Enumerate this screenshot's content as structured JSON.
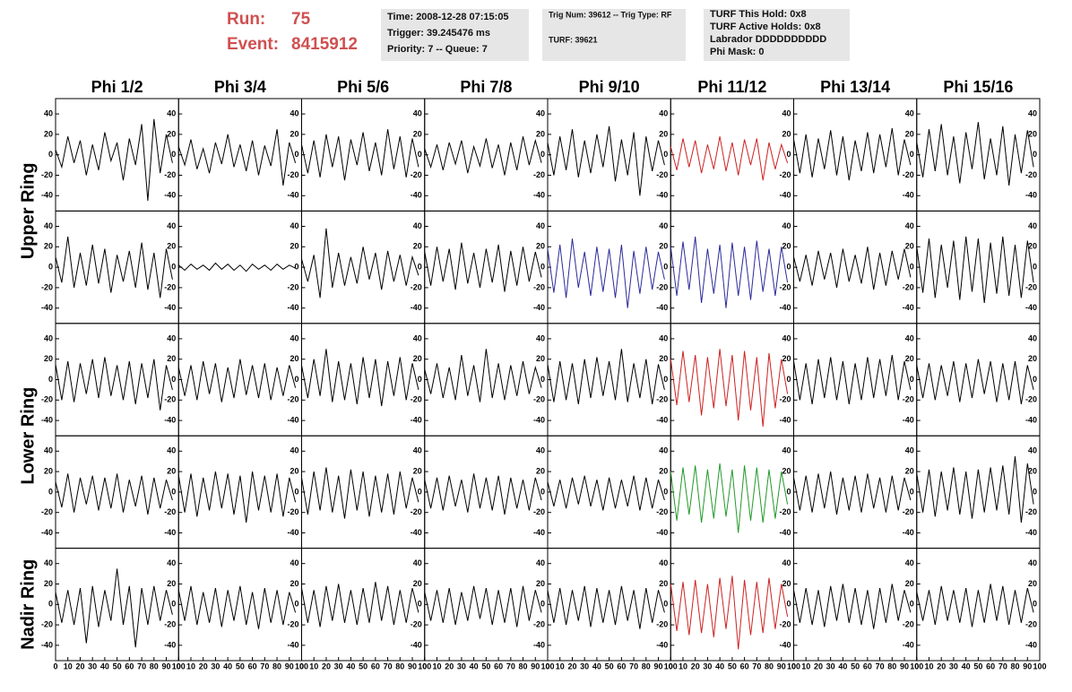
{
  "header": {
    "run": {
      "label": "Run:",
      "value": "75"
    },
    "event": {
      "label": "Event:",
      "value": "8415912"
    },
    "info_boxes": [
      [
        "Time: 2008-12-28 07:15:05",
        "Trigger: 39.245476 ms",
        "Priority: 7 -- Queue: 7"
      ],
      [
        "Trig Num: 39612 -- Trig Type: RF",
        "TURF: 39621"
      ],
      [
        "TURF This Hold: 0x8",
        "TURF Active Holds: 0x8",
        "Labrador DDDDDDDDDD",
        "Phi Mask: 0"
      ]
    ]
  },
  "chart_data": {
    "type": "line",
    "columns": [
      "Phi 1/2",
      "Phi 3/4",
      "Phi 5/6",
      "Phi 7/8",
      "Phi 9/10",
      "Phi 11/12",
      "Phi 13/14",
      "Phi 15/16"
    ],
    "rows": [
      "Upper Ring",
      "Lower Ring",
      "Nadir Ring"
    ],
    "x": [
      0,
      5,
      10,
      15,
      20,
      25,
      30,
      35,
      40,
      45,
      50,
      55,
      60,
      65,
      70,
      75,
      80,
      85,
      90,
      95
    ],
    "xlim": [
      0,
      100
    ],
    "xticks": [
      0,
      10,
      20,
      30,
      40,
      50,
      60,
      70,
      80,
      90,
      100
    ],
    "ylim": [
      -55,
      55
    ],
    "yticks": [
      -40,
      -20,
      0,
      20,
      40
    ],
    "series": [
      {
        "color": "#000000",
        "values": [
          5,
          -12,
          18,
          -8,
          14,
          -20,
          10,
          -15,
          22,
          -6,
          12,
          -25,
          16,
          -10,
          30,
          -45,
          35,
          -18,
          20,
          -8
        ]
      },
      {
        "color": "#000000",
        "values": [
          8,
          -10,
          15,
          -14,
          6,
          -18,
          12,
          -9,
          20,
          -12,
          10,
          -16,
          14,
          -20,
          9,
          -11,
          25,
          -30,
          12,
          -8
        ]
      },
      {
        "color": "#000000",
        "values": [
          10,
          -18,
          14,
          -22,
          20,
          -12,
          18,
          -25,
          15,
          -10,
          22,
          -16,
          12,
          -20,
          25,
          -14,
          18,
          -22,
          16,
          -12
        ]
      },
      {
        "color": "#000000",
        "values": [
          6,
          -12,
          10,
          -15,
          12,
          -9,
          14,
          -18,
          8,
          -11,
          16,
          -13,
          10,
          -20,
          12,
          -15,
          18,
          -10,
          14,
          -8
        ]
      },
      {
        "color": "#000000",
        "values": [
          12,
          -20,
          18,
          -15,
          25,
          -22,
          14,
          -18,
          20,
          -12,
          28,
          -26,
          15,
          -20,
          22,
          -40,
          18,
          -16,
          14,
          -10
        ]
      },
      {
        "color": "#cc2222",
        "values": [
          8,
          -15,
          16,
          -12,
          14,
          -18,
          10,
          -14,
          18,
          -16,
          12,
          -20,
          15,
          -10,
          16,
          -25,
          12,
          -14,
          10,
          -8
        ]
      },
      {
        "color": "#000000",
        "values": [
          15,
          -18,
          20,
          -22,
          16,
          -14,
          24,
          -20,
          18,
          -25,
          14,
          -16,
          22,
          -18,
          20,
          -12,
          26,
          -20,
          15,
          -10
        ]
      },
      {
        "color": "#000000",
        "values": [
          12,
          -22,
          25,
          -16,
          30,
          -20,
          18,
          -28,
          22,
          -14,
          32,
          -24,
          16,
          -20,
          28,
          -30,
          20,
          -18,
          24,
          -12
        ]
      },
      {
        "color": "#000000",
        "values": [
          10,
          -15,
          30,
          -20,
          14,
          -18,
          22,
          -16,
          18,
          -25,
          12,
          -14,
          16,
          -20,
          24,
          -22,
          14,
          -30,
          18,
          -12
        ]
      },
      {
        "color": "#000000",
        "values": [
          2,
          -3,
          3,
          -2,
          2,
          -3,
          4,
          -2,
          3,
          -3,
          2,
          -4,
          3,
          -2,
          2,
          -3,
          3,
          -2,
          2,
          -1
        ]
      },
      {
        "color": "#000000",
        "values": [
          8,
          -14,
          12,
          -30,
          38,
          -20,
          14,
          -18,
          10,
          -16,
          20,
          -12,
          14,
          -22,
          16,
          -14,
          12,
          -18,
          10,
          -8
        ]
      },
      {
        "color": "#000000",
        "values": [
          15,
          -18,
          20,
          -14,
          18,
          -22,
          24,
          -16,
          14,
          -20,
          18,
          -15,
          22,
          -24,
          16,
          -18,
          20,
          -14,
          15,
          -10
        ]
      },
      {
        "color": "#2a2a9a",
        "values": [
          18,
          -25,
          22,
          -30,
          28,
          -20,
          15,
          -28,
          20,
          -24,
          18,
          -30,
          22,
          -40,
          16,
          -26,
          20,
          -22,
          15,
          -12
        ]
      },
      {
        "color": "#2a2a9a",
        "values": [
          20,
          -28,
          25,
          -22,
          30,
          -35,
          18,
          -26,
          22,
          -40,
          24,
          -28,
          20,
          -32,
          26,
          -24,
          18,
          -28,
          20,
          -15
        ]
      },
      {
        "color": "#000000",
        "values": [
          10,
          -14,
          12,
          -18,
          16,
          -12,
          14,
          -20,
          18,
          -14,
          12,
          -16,
          20,
          -22,
          14,
          -18,
          16,
          -12,
          18,
          -10
        ]
      },
      {
        "color": "#000000",
        "values": [
          20,
          -25,
          28,
          -30,
          22,
          -20,
          26,
          -32,
          30,
          -24,
          28,
          -35,
          24,
          -26,
          30,
          -28,
          22,
          -30,
          26,
          -15
        ]
      },
      {
        "color": "#000000",
        "values": [
          15,
          -20,
          18,
          -22,
          16,
          -14,
          20,
          -18,
          22,
          -16,
          14,
          -20,
          18,
          -24,
          16,
          -18,
          20,
          -30,
          14,
          -10
        ]
      },
      {
        "color": "#000000",
        "values": [
          12,
          -16,
          14,
          -20,
          18,
          -14,
          16,
          -22,
          12,
          -18,
          20,
          -15,
          14,
          -18,
          16,
          -20,
          12,
          -16,
          14,
          -8
        ]
      },
      {
        "color": "#000000",
        "values": [
          14,
          -18,
          20,
          -16,
          30,
          -22,
          18,
          -20,
          16,
          -24,
          22,
          -18,
          20,
          -26,
          18,
          -16,
          22,
          -20,
          16,
          -10
        ]
      },
      {
        "color": "#000000",
        "values": [
          10,
          -14,
          16,
          -18,
          12,
          -20,
          24,
          -16,
          14,
          -22,
          30,
          -18,
          16,
          -20,
          14,
          -16,
          18,
          -14,
          12,
          -8
        ]
      },
      {
        "color": "#000000",
        "values": [
          15,
          -22,
          18,
          -20,
          16,
          -24,
          20,
          -18,
          22,
          -16,
          18,
          -20,
          30,
          -22,
          16,
          -18,
          20,
          -24,
          15,
          -10
        ]
      },
      {
        "color": "#cc2222",
        "values": [
          20,
          -25,
          28,
          -22,
          24,
          -35,
          22,
          -28,
          30,
          -26,
          24,
          -40,
          28,
          -30,
          22,
          -46,
          26,
          -28,
          20,
          -14
        ]
      },
      {
        "color": "#000000",
        "values": [
          18,
          -20,
          16,
          -24,
          20,
          -18,
          22,
          -20,
          18,
          -24,
          16,
          -20,
          22,
          -18,
          20,
          -16,
          24,
          -20,
          18,
          -10
        ]
      },
      {
        "color": "#000000",
        "values": [
          14,
          -18,
          16,
          -20,
          14,
          -16,
          18,
          -22,
          16,
          -18,
          20,
          -14,
          18,
          -22,
          16,
          -20,
          18,
          -24,
          14,
          -10
        ]
      },
      {
        "color": "#000000",
        "values": [
          10,
          -15,
          18,
          -20,
          14,
          -12,
          16,
          -18,
          14,
          -16,
          18,
          -20,
          12,
          -14,
          16,
          -22,
          14,
          -16,
          12,
          -8
        ]
      },
      {
        "color": "#000000",
        "values": [
          16,
          -20,
          18,
          -24,
          14,
          -18,
          20,
          -16,
          18,
          -22,
          16,
          -30,
          20,
          -18,
          16,
          -20,
          18,
          -24,
          14,
          -10
        ]
      },
      {
        "color": "#000000",
        "values": [
          14,
          -22,
          20,
          -18,
          24,
          -20,
          16,
          -26,
          22,
          -18,
          20,
          -24,
          16,
          -20,
          18,
          -22,
          20,
          -16,
          14,
          -10
        ]
      },
      {
        "color": "#000000",
        "values": [
          12,
          -16,
          14,
          -18,
          16,
          -14,
          12,
          -20,
          18,
          -16,
          14,
          -18,
          16,
          -22,
          14,
          -16,
          12,
          -18,
          14,
          -8
        ]
      },
      {
        "color": "#000000",
        "values": [
          10,
          -14,
          12,
          -16,
          14,
          -12,
          16,
          -14,
          12,
          -18,
          14,
          -16,
          12,
          -14,
          16,
          -18,
          14,
          -16,
          12,
          -8
        ]
      },
      {
        "color": "#22992a",
        "values": [
          20,
          -28,
          24,
          -22,
          26,
          -30,
          22,
          -26,
          28,
          -24,
          22,
          -40,
          26,
          -28,
          24,
          -30,
          22,
          -26,
          20,
          -12
        ]
      },
      {
        "color": "#000000",
        "values": [
          14,
          -18,
          16,
          -20,
          18,
          -16,
          20,
          -22,
          14,
          -18,
          16,
          -20,
          18,
          -16,
          14,
          -20,
          16,
          -18,
          14,
          -8
        ]
      },
      {
        "color": "#000000",
        "values": [
          18,
          -20,
          22,
          -24,
          20,
          -18,
          24,
          -22,
          20,
          -26,
          22,
          -20,
          24,
          -18,
          26,
          -22,
          35,
          -30,
          28,
          -12
        ]
      },
      {
        "color": "#000000",
        "values": [
          12,
          -18,
          14,
          -20,
          16,
          -38,
          18,
          -22,
          14,
          -16,
          35,
          -20,
          18,
          -42,
          16,
          -20,
          18,
          -16,
          14,
          -10
        ]
      },
      {
        "color": "#000000",
        "values": [
          14,
          -16,
          18,
          -20,
          12,
          -18,
          16,
          -22,
          14,
          -16,
          18,
          -20,
          12,
          -24,
          16,
          -18,
          14,
          -20,
          12,
          -8
        ]
      },
      {
        "color": "#000000",
        "values": [
          16,
          -18,
          14,
          -22,
          18,
          -16,
          20,
          -18,
          14,
          -20,
          16,
          -18,
          22,
          -16,
          18,
          -20,
          14,
          -18,
          16,
          -8
        ]
      },
      {
        "color": "#000000",
        "values": [
          12,
          -16,
          14,
          -18,
          16,
          -20,
          12,
          -16,
          18,
          -14,
          16,
          -20,
          14,
          -18,
          16,
          -22,
          18,
          -16,
          14,
          -8
        ]
      },
      {
        "color": "#000000",
        "values": [
          14,
          -18,
          16,
          -20,
          14,
          -16,
          18,
          -22,
          16,
          -18,
          14,
          -20,
          18,
          -16,
          14,
          -24,
          16,
          -18,
          14,
          -8
        ]
      },
      {
        "color": "#cc2222",
        "values": [
          20,
          -26,
          22,
          -30,
          24,
          -28,
          20,
          -32,
          26,
          -24,
          28,
          -44,
          24,
          -30,
          22,
          -28,
          26,
          -24,
          20,
          -12
        ]
      },
      {
        "color": "#000000",
        "values": [
          14,
          -18,
          16,
          -20,
          14,
          -22,
          18,
          -16,
          20,
          -18,
          16,
          -20,
          14,
          -24,
          16,
          -18,
          20,
          -16,
          14,
          -8
        ]
      },
      {
        "color": "#000000",
        "values": [
          12,
          -16,
          14,
          -20,
          18,
          -16,
          14,
          -18,
          16,
          -22,
          14,
          -18,
          20,
          -16,
          18,
          -20,
          14,
          -18,
          16,
          -8
        ]
      }
    ]
  }
}
